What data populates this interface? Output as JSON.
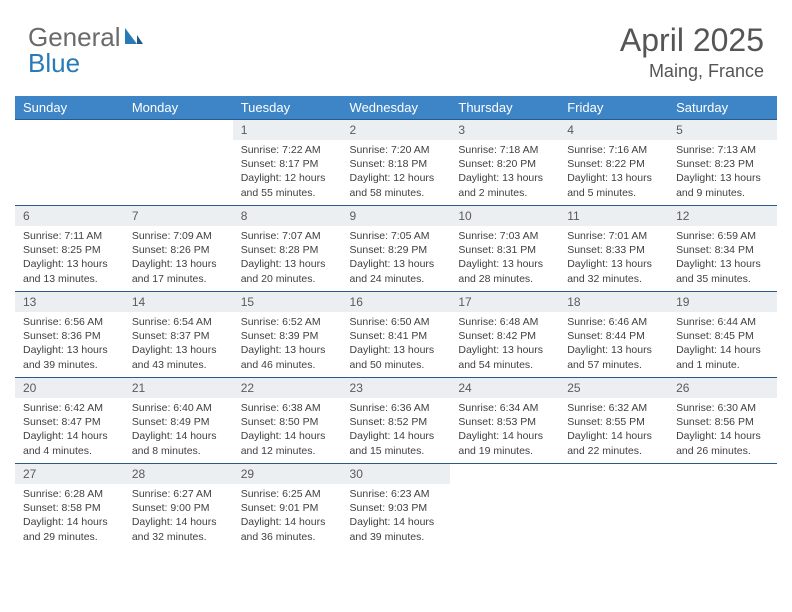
{
  "brand": {
    "part1": "General",
    "part2": "Blue"
  },
  "title": "April 2025",
  "location": "Maing, France",
  "colors": {
    "header_bg": "#3d85c6",
    "header_text": "#ffffff",
    "daynum_bg": "#eceff1",
    "row_border": "#2a5a8a",
    "brand_gray": "#6a6a6a",
    "brand_blue": "#2a7ab8"
  },
  "weekdays": [
    "Sunday",
    "Monday",
    "Tuesday",
    "Wednesday",
    "Thursday",
    "Friday",
    "Saturday"
  ],
  "weeks": [
    [
      {
        "n": "",
        "sr": "",
        "ss": "",
        "dl": ""
      },
      {
        "n": "",
        "sr": "",
        "ss": "",
        "dl": ""
      },
      {
        "n": "1",
        "sr": "Sunrise: 7:22 AM",
        "ss": "Sunset: 8:17 PM",
        "dl": "Daylight: 12 hours and 55 minutes."
      },
      {
        "n": "2",
        "sr": "Sunrise: 7:20 AM",
        "ss": "Sunset: 8:18 PM",
        "dl": "Daylight: 12 hours and 58 minutes."
      },
      {
        "n": "3",
        "sr": "Sunrise: 7:18 AM",
        "ss": "Sunset: 8:20 PM",
        "dl": "Daylight: 13 hours and 2 minutes."
      },
      {
        "n": "4",
        "sr": "Sunrise: 7:16 AM",
        "ss": "Sunset: 8:22 PM",
        "dl": "Daylight: 13 hours and 5 minutes."
      },
      {
        "n": "5",
        "sr": "Sunrise: 7:13 AM",
        "ss": "Sunset: 8:23 PM",
        "dl": "Daylight: 13 hours and 9 minutes."
      }
    ],
    [
      {
        "n": "6",
        "sr": "Sunrise: 7:11 AM",
        "ss": "Sunset: 8:25 PM",
        "dl": "Daylight: 13 hours and 13 minutes."
      },
      {
        "n": "7",
        "sr": "Sunrise: 7:09 AM",
        "ss": "Sunset: 8:26 PM",
        "dl": "Daylight: 13 hours and 17 minutes."
      },
      {
        "n": "8",
        "sr": "Sunrise: 7:07 AM",
        "ss": "Sunset: 8:28 PM",
        "dl": "Daylight: 13 hours and 20 minutes."
      },
      {
        "n": "9",
        "sr": "Sunrise: 7:05 AM",
        "ss": "Sunset: 8:29 PM",
        "dl": "Daylight: 13 hours and 24 minutes."
      },
      {
        "n": "10",
        "sr": "Sunrise: 7:03 AM",
        "ss": "Sunset: 8:31 PM",
        "dl": "Daylight: 13 hours and 28 minutes."
      },
      {
        "n": "11",
        "sr": "Sunrise: 7:01 AM",
        "ss": "Sunset: 8:33 PM",
        "dl": "Daylight: 13 hours and 32 minutes."
      },
      {
        "n": "12",
        "sr": "Sunrise: 6:59 AM",
        "ss": "Sunset: 8:34 PM",
        "dl": "Daylight: 13 hours and 35 minutes."
      }
    ],
    [
      {
        "n": "13",
        "sr": "Sunrise: 6:56 AM",
        "ss": "Sunset: 8:36 PM",
        "dl": "Daylight: 13 hours and 39 minutes."
      },
      {
        "n": "14",
        "sr": "Sunrise: 6:54 AM",
        "ss": "Sunset: 8:37 PM",
        "dl": "Daylight: 13 hours and 43 minutes."
      },
      {
        "n": "15",
        "sr": "Sunrise: 6:52 AM",
        "ss": "Sunset: 8:39 PM",
        "dl": "Daylight: 13 hours and 46 minutes."
      },
      {
        "n": "16",
        "sr": "Sunrise: 6:50 AM",
        "ss": "Sunset: 8:41 PM",
        "dl": "Daylight: 13 hours and 50 minutes."
      },
      {
        "n": "17",
        "sr": "Sunrise: 6:48 AM",
        "ss": "Sunset: 8:42 PM",
        "dl": "Daylight: 13 hours and 54 minutes."
      },
      {
        "n": "18",
        "sr": "Sunrise: 6:46 AM",
        "ss": "Sunset: 8:44 PM",
        "dl": "Daylight: 13 hours and 57 minutes."
      },
      {
        "n": "19",
        "sr": "Sunrise: 6:44 AM",
        "ss": "Sunset: 8:45 PM",
        "dl": "Daylight: 14 hours and 1 minute."
      }
    ],
    [
      {
        "n": "20",
        "sr": "Sunrise: 6:42 AM",
        "ss": "Sunset: 8:47 PM",
        "dl": "Daylight: 14 hours and 4 minutes."
      },
      {
        "n": "21",
        "sr": "Sunrise: 6:40 AM",
        "ss": "Sunset: 8:49 PM",
        "dl": "Daylight: 14 hours and 8 minutes."
      },
      {
        "n": "22",
        "sr": "Sunrise: 6:38 AM",
        "ss": "Sunset: 8:50 PM",
        "dl": "Daylight: 14 hours and 12 minutes."
      },
      {
        "n": "23",
        "sr": "Sunrise: 6:36 AM",
        "ss": "Sunset: 8:52 PM",
        "dl": "Daylight: 14 hours and 15 minutes."
      },
      {
        "n": "24",
        "sr": "Sunrise: 6:34 AM",
        "ss": "Sunset: 8:53 PM",
        "dl": "Daylight: 14 hours and 19 minutes."
      },
      {
        "n": "25",
        "sr": "Sunrise: 6:32 AM",
        "ss": "Sunset: 8:55 PM",
        "dl": "Daylight: 14 hours and 22 minutes."
      },
      {
        "n": "26",
        "sr": "Sunrise: 6:30 AM",
        "ss": "Sunset: 8:56 PM",
        "dl": "Daylight: 14 hours and 26 minutes."
      }
    ],
    [
      {
        "n": "27",
        "sr": "Sunrise: 6:28 AM",
        "ss": "Sunset: 8:58 PM",
        "dl": "Daylight: 14 hours and 29 minutes."
      },
      {
        "n": "28",
        "sr": "Sunrise: 6:27 AM",
        "ss": "Sunset: 9:00 PM",
        "dl": "Daylight: 14 hours and 32 minutes."
      },
      {
        "n": "29",
        "sr": "Sunrise: 6:25 AM",
        "ss": "Sunset: 9:01 PM",
        "dl": "Daylight: 14 hours and 36 minutes."
      },
      {
        "n": "30",
        "sr": "Sunrise: 6:23 AM",
        "ss": "Sunset: 9:03 PM",
        "dl": "Daylight: 14 hours and 39 minutes."
      },
      {
        "n": "",
        "sr": "",
        "ss": "",
        "dl": ""
      },
      {
        "n": "",
        "sr": "",
        "ss": "",
        "dl": ""
      },
      {
        "n": "",
        "sr": "",
        "ss": "",
        "dl": ""
      }
    ]
  ]
}
